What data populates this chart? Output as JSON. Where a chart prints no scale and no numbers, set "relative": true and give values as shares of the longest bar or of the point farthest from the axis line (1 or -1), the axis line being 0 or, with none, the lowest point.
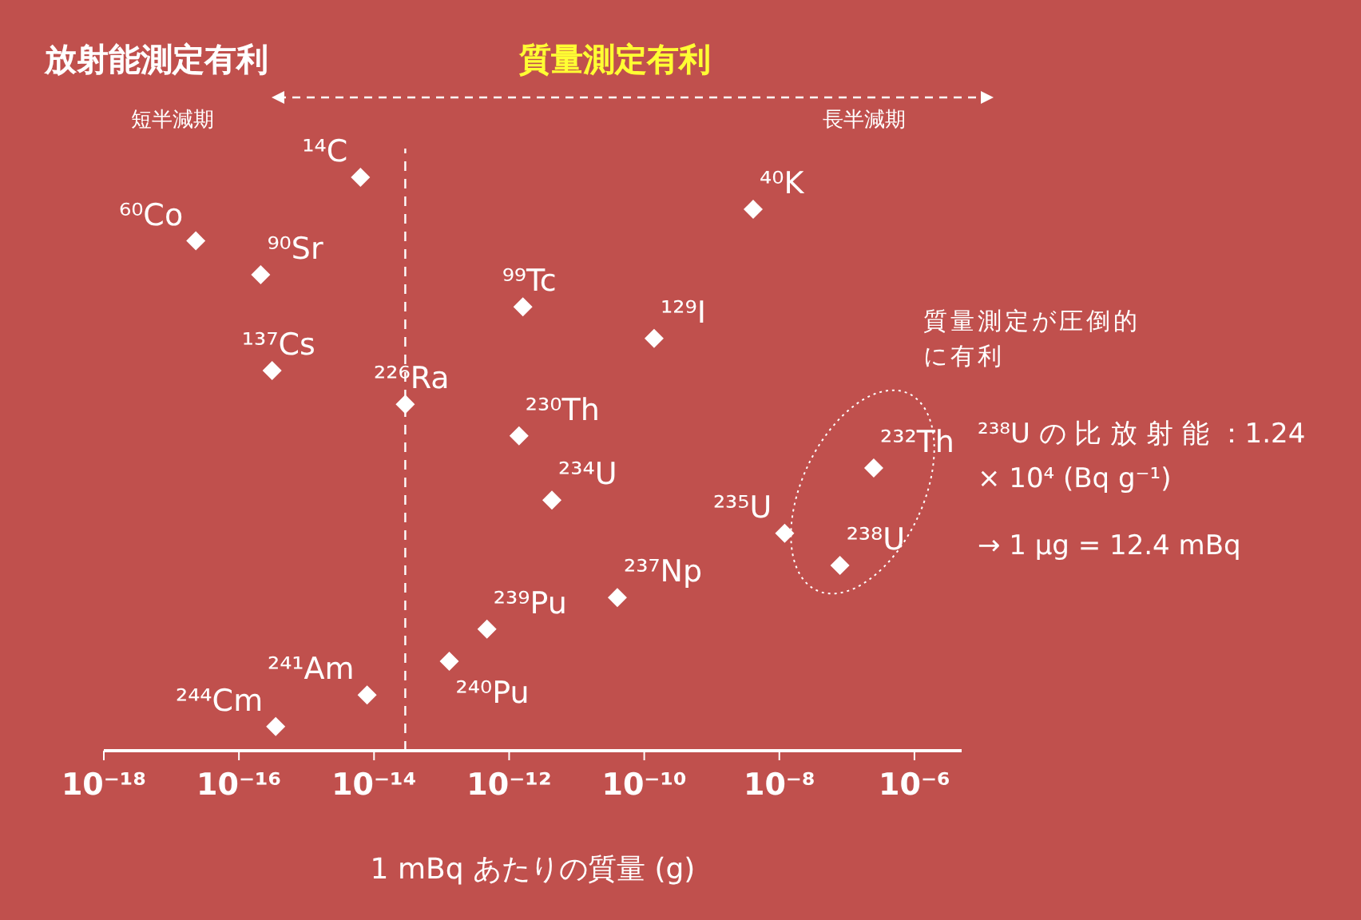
{
  "chart_data": {
    "type": "scatter",
    "relative": true,
    "log": "x",
    "marker": "diamond",
    "xlabel": "1 mBq あたりの質量 (g)",
    "xlim": [
      1e-18,
      5e-06
    ],
    "xticks": [
      {
        "value": 1e-18,
        "label": "10⁻¹⁸"
      },
      {
        "value": 1e-16,
        "label": "10⁻¹⁶"
      },
      {
        "value": 1e-14,
        "label": "10⁻¹⁴"
      },
      {
        "value": 1e-12,
        "label": "10⁻¹²"
      },
      {
        "value": 1e-10,
        "label": "10⁻¹⁰"
      },
      {
        "value": 1e-08,
        "label": "10⁻⁸"
      },
      {
        "value": 1e-06,
        "label": "10⁻⁶"
      }
    ],
    "ref_lines": [
      {
        "axis": "x",
        "value": 2.9e-14,
        "line_style": "dashed",
        "color": "#ffffff"
      }
    ],
    "x": [
      6.3e-15,
      4.1e-09,
      2.3e-17,
      2.1e-16,
      1.6e-12,
      1.4e-10,
      3.1e-16,
      2.9e-14,
      1.4e-12,
      2.5e-07,
      4.3e-12,
      1.2e-08,
      7.9e-08,
      4e-11,
      4.7e-13,
      1.3e-13,
      7.9e-15,
      3.5e-16
    ],
    "values": [
      1,
      0.944,
      0.889,
      0.83,
      0.774,
      0.719,
      0.663,
      0.604,
      0.549,
      0.493,
      0.437,
      0.379,
      0.323,
      0.267,
      0.212,
      0.156,
      0.097,
      0.042
    ],
    "color": "#ffffff",
    "annotations": [
      "放射能測定有利",
      "質量測定有利",
      "短半減期",
      "長半減期",
      "質量測定が圧倒的に有利",
      "²³⁸U の 比 放 射 能 ：1.24 × 10⁴ (Bq g⁻¹)",
      "→ 1 μg = 12.4 mBq",
      {
        "text": "¹⁴C",
        "x": 6.3e-15,
        "y": 1
      },
      {
        "text": "⁴⁰K",
        "x": 4.1e-09,
        "y": 0.944
      },
      {
        "text": "⁶⁰Co",
        "x": 2.3e-17,
        "y": 0.889
      },
      {
        "text": "⁹⁰Sr",
        "x": 2.1e-16,
        "y": 0.83
      },
      {
        "text": "⁹⁹Tc",
        "x": 1.6e-12,
        "y": 0.774
      },
      {
        "text": "¹²⁹I",
        "x": 1.4e-10,
        "y": 0.719
      },
      {
        "text": "¹³⁷Cs",
        "x": 3.1e-16,
        "y": 0.663
      },
      {
        "text": "²²⁶Ra",
        "x": 2.9e-14,
        "y": 0.604
      },
      {
        "text": "²³⁰Th",
        "x": 1.4e-12,
        "y": 0.549
      },
      {
        "text": "²³²Th",
        "x": 2.5e-07,
        "y": 0.493
      },
      {
        "text": "²³⁴U",
        "x": 4.3e-12,
        "y": 0.437
      },
      {
        "text": "²³⁵U",
        "x": 1.2e-08,
        "y": 0.379
      },
      {
        "text": "²³⁸U",
        "x": 7.9e-08,
        "y": 0.323
      },
      {
        "text": "²³⁷Np",
        "x": 4e-11,
        "y": 0.267
      },
      {
        "text": "²³⁹Pu",
        "x": 4.7e-13,
        "y": 0.212
      },
      {
        "text": "²⁴⁰Pu",
        "x": 1.3e-13,
        "y": 0.156
      },
      {
        "text": "²⁴¹Am",
        "x": 7.9e-15,
        "y": 0.097
      },
      {
        "text": "²⁴⁴Cm",
        "x": 3.5e-16,
        "y": 0.042
      }
    ]
  }
}
